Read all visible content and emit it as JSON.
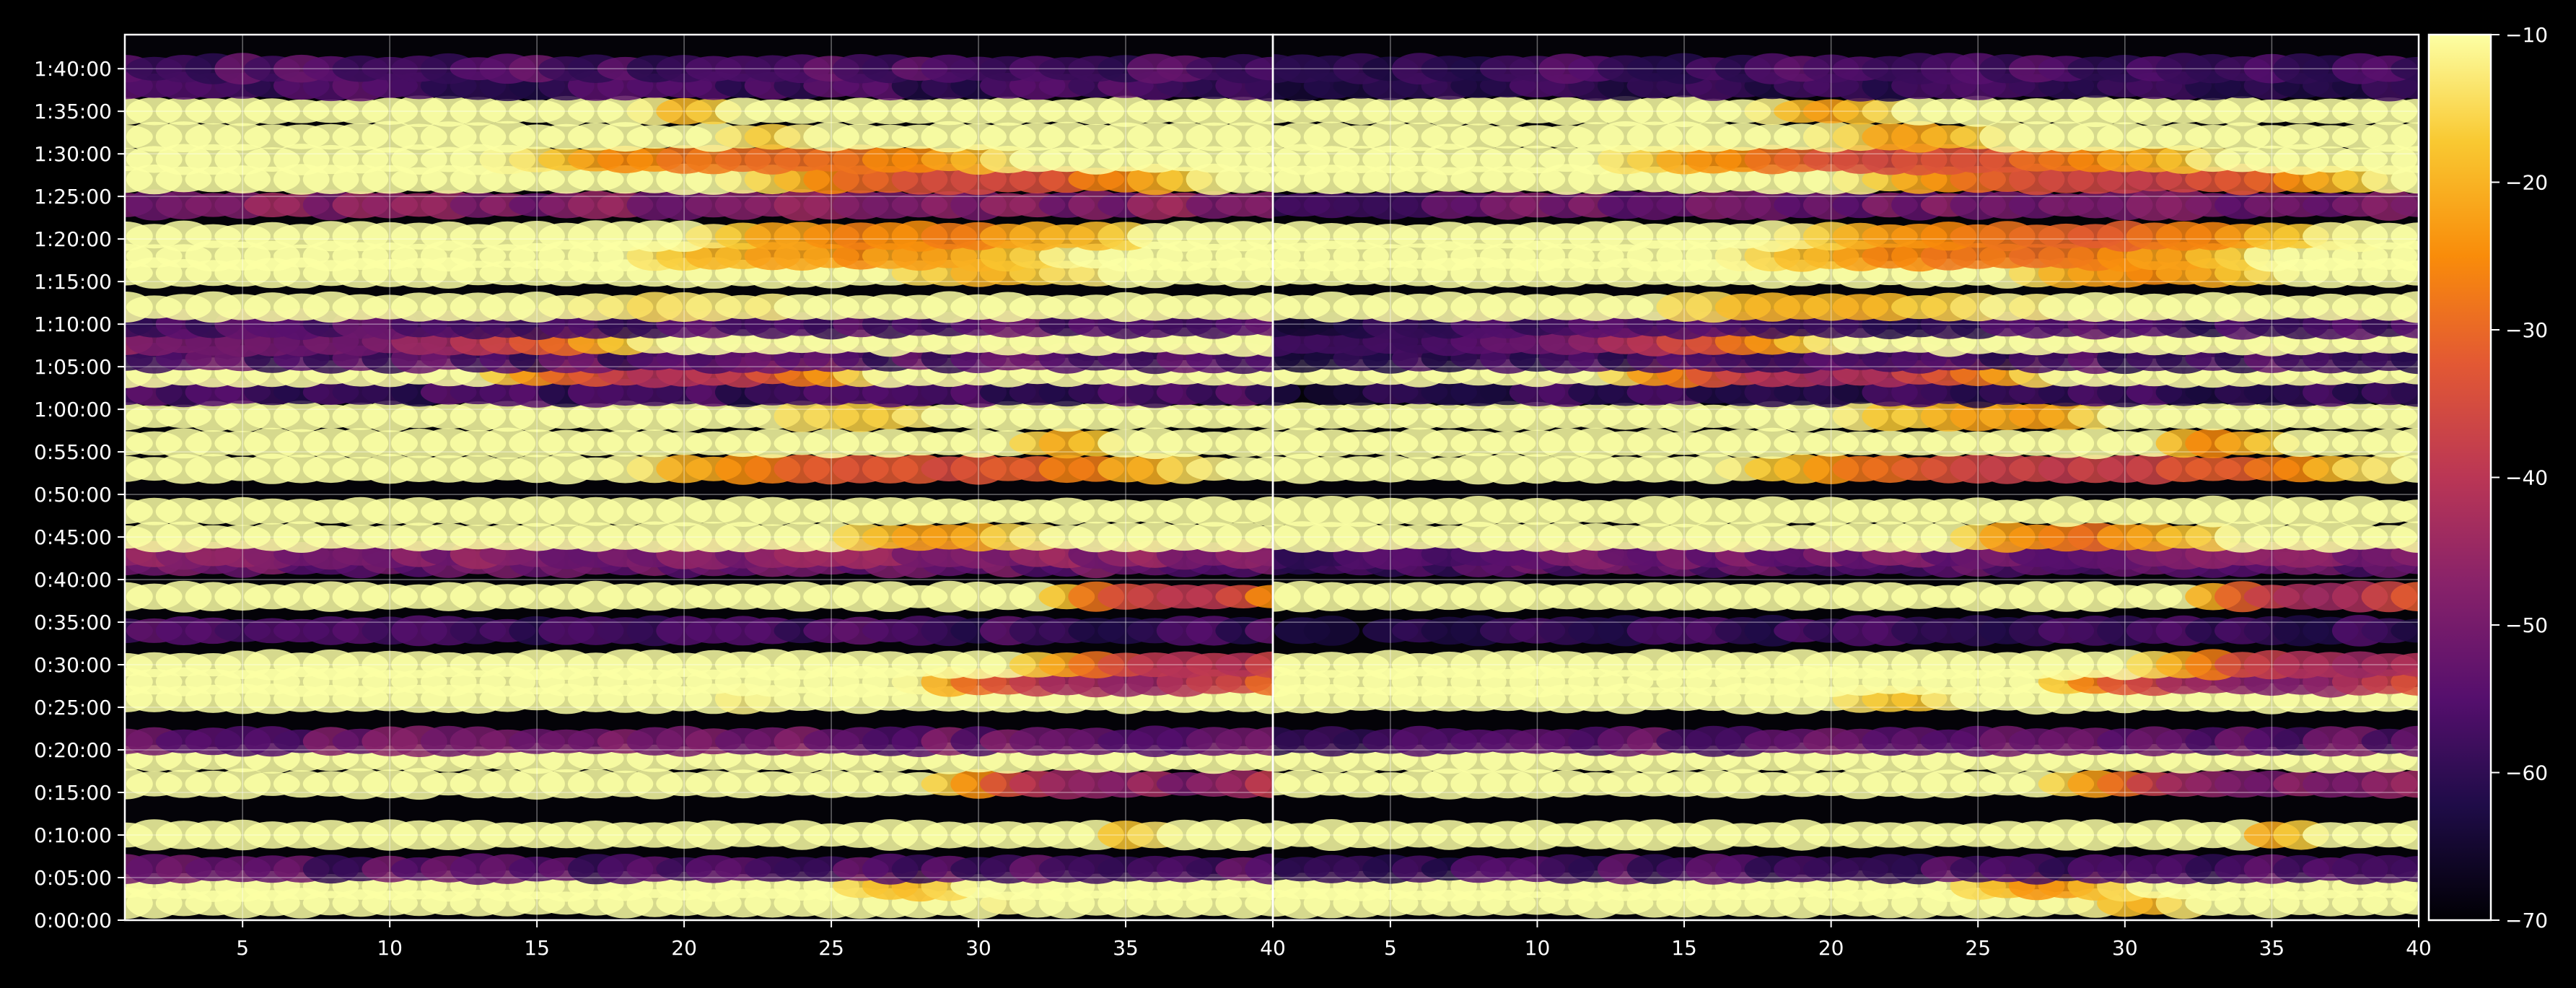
{
  "chart_data": {
    "type": "heatmap",
    "background": "#000000",
    "colormap": "inferno",
    "panels": [
      {
        "id": "left",
        "x_range": [
          1,
          40
        ],
        "x_ticks": [
          5,
          10,
          15,
          20,
          25,
          30,
          35,
          40
        ],
        "intensity_scale": 1.0
      },
      {
        "id": "right",
        "x_range": [
          1,
          40
        ],
        "x_ticks": [
          5,
          10,
          15,
          20,
          25,
          30,
          35,
          40
        ],
        "intensity_scale": 0.9
      }
    ],
    "y_axis": {
      "range_seconds": [
        0,
        6240
      ],
      "tick_values_seconds": [
        0,
        300,
        600,
        900,
        1200,
        1500,
        1800,
        2100,
        2400,
        2700,
        3000,
        3300,
        3600,
        3900,
        4200,
        4500,
        4800,
        5100,
        5400,
        5700,
        6000
      ],
      "tick_labels": [
        "0:00:00",
        "0:05:00",
        "0:10:00",
        "0:15:00",
        "0:20:00",
        "0:25:00",
        "0:30:00",
        "0:35:00",
        "0:40:00",
        "0:45:00",
        "0:50:00",
        "0:55:00",
        "1:00:00",
        "1:05:00",
        "1:10:00",
        "1:15:00",
        "1:20:00",
        "1:25:00",
        "1:30:00",
        "1:35:00",
        "1:40:00"
      ]
    },
    "grid": true,
    "colorbar": {
      "range": [
        -70,
        -10
      ],
      "ticks": [
        -10,
        -20,
        -30,
        -40,
        -50,
        -60,
        -70
      ],
      "tick_labels": [
        "−10",
        "−20",
        "−30",
        "−40",
        "−50",
        "−60",
        "−70"
      ]
    },
    "bands": [
      {
        "t": 120,
        "level": -32,
        "hot": [
          {
            "c": 26,
            "w": 4,
            "l": -22
          },
          {
            "c": 34,
            "w": 3,
            "l": -22
          }
        ]
      },
      {
        "t": 240,
        "level": -34,
        "hot": [
          {
            "c": 25,
            "w": 3,
            "l": -24
          },
          {
            "c": 30,
            "w": 3,
            "l": -24
          }
        ]
      },
      {
        "t": 360,
        "level": -55,
        "hot": []
      },
      {
        "t": 600,
        "level": -62,
        "hot": [
          {
            "c": 28,
            "w": 3,
            "l": -55
          },
          {
            "c": 39,
            "w": 2,
            "l": -40
          }
        ]
      },
      {
        "t": 960,
        "level": -48,
        "hot": [
          {
            "c": 36,
            "w": 3,
            "l": -50
          }
        ]
      },
      {
        "t": 1140,
        "level": -42,
        "hot": [
          {
            "c": 16,
            "w": 3,
            "l": -30
          },
          {
            "c": 26,
            "w": 3,
            "l": -30
          },
          {
            "c": 31,
            "w": 4,
            "l": -30
          }
        ]
      },
      {
        "t": 1260,
        "level": -52,
        "hot": []
      },
      {
        "t": 1560,
        "level": -38,
        "hot": [
          {
            "c": 16,
            "w": 5,
            "l": -22
          },
          {
            "c": 30,
            "w": 5,
            "l": -28
          }
        ]
      },
      {
        "t": 1680,
        "level": -55,
        "hot": [
          {
            "c": 35,
            "w": 3,
            "l": -45
          }
        ]
      },
      {
        "t": 1800,
        "level": -48,
        "hot": [
          {
            "c": 38,
            "w": 3,
            "l": -40
          }
        ]
      },
      {
        "t": 2040,
        "level": -58,
        "hot": []
      },
      {
        "t": 2280,
        "level": -62,
        "hot": [
          {
            "c": 37,
            "w": 2,
            "l": -40
          }
        ]
      },
      {
        "t": 2520,
        "level": -52,
        "hot": []
      },
      {
        "t": 2580,
        "level": -48,
        "hot": []
      },
      {
        "t": 2700,
        "level": -42,
        "hot": [
          {
            "c": 26,
            "w": 4,
            "l": -26
          },
          {
            "c": 30,
            "w": 3,
            "l": -26
          }
        ]
      },
      {
        "t": 2880,
        "level": -36,
        "hot": [
          {
            "c": 3,
            "w": 2,
            "l": -30
          },
          {
            "c": 39,
            "w": 2,
            "l": -22
          }
        ]
      },
      {
        "t": 3180,
        "level": -44,
        "hot": [
          {
            "c": 28,
            "w": 5,
            "l": -34
          }
        ]
      },
      {
        "t": 3360,
        "level": -50,
        "hot": [
          {
            "c": 26,
            "w": 4,
            "l": -40
          },
          {
            "c": 36,
            "w": 2,
            "l": -38
          }
        ]
      },
      {
        "t": 3550,
        "level": -38,
        "hot": [
          {
            "c": 30,
            "w": 6,
            "l": -20
          },
          {
            "c": 24,
            "w": 3,
            "l": -24
          }
        ]
      },
      {
        "t": 3720,
        "level": -58,
        "hot": []
      },
      {
        "t": 3860,
        "level": -48,
        "hot": [
          {
            "c": 20,
            "w": 3,
            "l": -40
          }
        ]
      },
      {
        "t": 3960,
        "level": -56,
        "hot": []
      },
      {
        "t": 4080,
        "level": -62,
        "hot": [
          {
            "c": 6,
            "w": 5,
            "l": -52
          }
        ]
      },
      {
        "t": 4200,
        "level": -56,
        "hot": []
      },
      {
        "t": 4320,
        "level": -34,
        "hot": [
          {
            "c": 17,
            "w": 7,
            "l": -16
          },
          {
            "c": 24,
            "w": 6,
            "l": -20
          }
        ]
      },
      {
        "t": 4560,
        "level": -38,
        "hot": [
          {
            "c": 27,
            "w": 5,
            "l": -24
          },
          {
            "c": 31,
            "w": 3,
            "l": -20
          }
        ]
      },
      {
        "t": 4680,
        "level": -35,
        "hot": [
          {
            "c": 26,
            "w": 5,
            "l": -24
          }
        ]
      },
      {
        "t": 4820,
        "level": -40,
        "hot": [
          {
            "c": 28,
            "w": 5,
            "l": -26
          }
        ]
      },
      {
        "t": 5040,
        "level": -48,
        "hot": []
      },
      {
        "t": 5220,
        "level": -44,
        "hot": [
          {
            "c": 30,
            "w": 4,
            "l": -34
          }
        ]
      },
      {
        "t": 5360,
        "level": -40,
        "hot": [
          {
            "c": 23,
            "w": 5,
            "l": -30
          }
        ]
      },
      {
        "t": 5520,
        "level": -38,
        "hot": [
          {
            "c": 14,
            "w": 6,
            "l": -30
          },
          {
            "c": 30,
            "w": 5,
            "l": -30
          }
        ]
      },
      {
        "t": 5700,
        "level": -44,
        "hot": [
          {
            "c": 15,
            "w": 4,
            "l": -28
          },
          {
            "c": 24,
            "w": 3,
            "l": -30
          }
        ]
      },
      {
        "t": 5880,
        "level": -58,
        "hot": []
      },
      {
        "t": 6000,
        "level": -56,
        "hot": []
      }
    ]
  }
}
